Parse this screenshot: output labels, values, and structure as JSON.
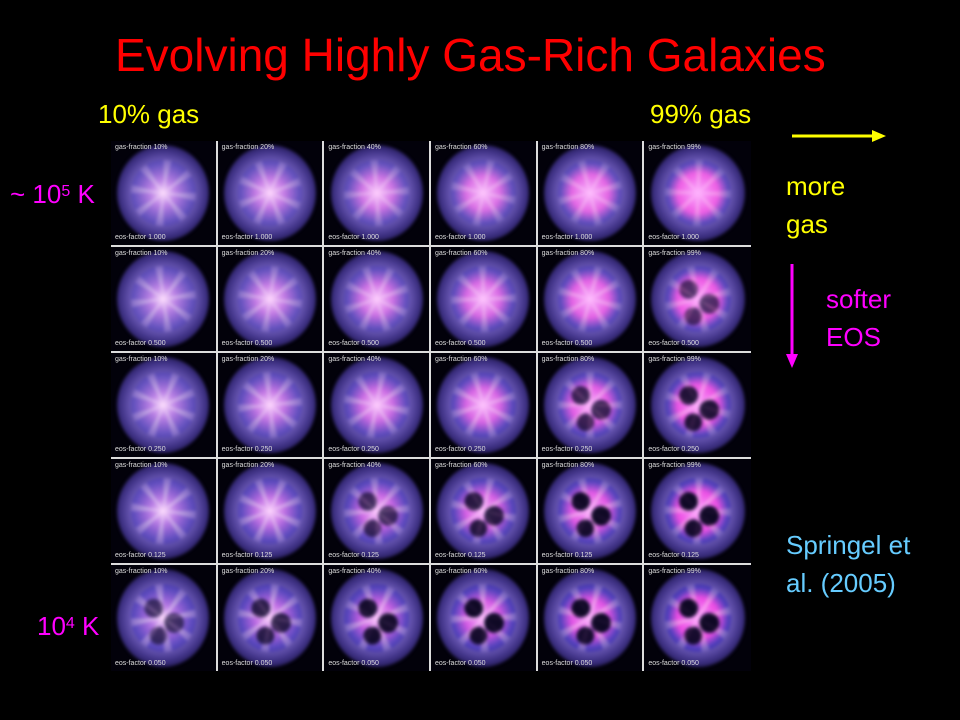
{
  "title": "Evolving Highly Gas-Rich Galaxies",
  "top_left_label": "10% gas",
  "top_right_label": "99% gas",
  "left_top_label": {
    "prefix": "~ 10",
    "exp": "5",
    "unit": " K"
  },
  "left_bottom_label": {
    "prefix": "10",
    "exp": "4",
    "unit": " K"
  },
  "right_more_gas": [
    "more",
    "gas"
  ],
  "right_softer_eos": [
    "softer",
    "EOS"
  ],
  "citation": [
    "Springel et",
    "al. (2005)"
  ],
  "colors": {
    "title": "#ff0000",
    "gas_axis": "#ffff00",
    "eos_axis": "#ff00ff",
    "citation": "#66ccff"
  },
  "grid": {
    "gas_fraction_labels": [
      "gas-fraction 10%",
      "gas-fraction 20%",
      "gas-fraction 40%",
      "gas-fraction 60%",
      "gas-fraction 80%",
      "gas-fraction 99%"
    ],
    "eos_factor_labels": [
      "eos-factor 1.000",
      "eos-factor 0.500",
      "eos-factor 0.250",
      "eos-factor 0.125",
      "eos-factor 0.050"
    ]
  }
}
